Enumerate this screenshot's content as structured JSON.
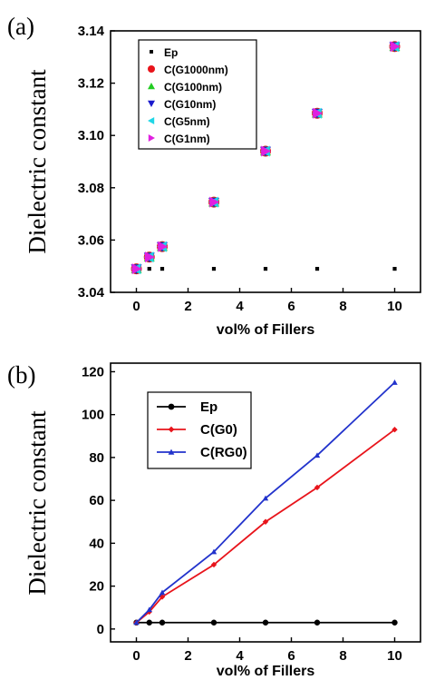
{
  "chart_data": [
    {
      "panel_label": "(a)",
      "type": "scatter",
      "xlabel": "vol% of Fillers",
      "ylabel": "Dielectric constant",
      "xlim": [
        -1,
        11
      ],
      "ylim": [
        3.04,
        3.14
      ],
      "xticks": [
        0,
        2,
        4,
        6,
        8,
        10
      ],
      "yticks": [
        3.04,
        3.06,
        3.08,
        3.1,
        3.12,
        3.14
      ],
      "ytick_labels": [
        "3.04",
        "3.06",
        "3.08",
        "3.10",
        "3.12",
        "3.14"
      ],
      "legend_position": "top-left",
      "series": [
        {
          "name": "Ep",
          "marker": "square",
          "color": "#000000",
          "x": [
            0,
            0.5,
            1,
            3,
            5,
            7,
            10
          ],
          "y": [
            3.049,
            3.049,
            3.049,
            3.049,
            3.049,
            3.049,
            3.049
          ]
        },
        {
          "name": "C(G1000nm)",
          "marker": "circle",
          "color": "#e8141b",
          "x": [
            0,
            0.5,
            1,
            3,
            5,
            7,
            10
          ],
          "y": [
            3.049,
            3.0535,
            3.0575,
            3.0745,
            3.094,
            3.1085,
            3.134
          ]
        },
        {
          "name": "C(G100nm)",
          "marker": "triangle-up",
          "color": "#22cc22",
          "x": [
            0,
            0.5,
            1,
            3,
            5,
            7,
            10
          ],
          "y": [
            3.049,
            3.0535,
            3.0575,
            3.0745,
            3.094,
            3.1085,
            3.134
          ]
        },
        {
          "name": "C(G10nm)",
          "marker": "triangle-down",
          "color": "#1a1acc",
          "x": [
            0,
            0.5,
            1,
            3,
            5,
            7,
            10
          ],
          "y": [
            3.049,
            3.0535,
            3.0575,
            3.0745,
            3.094,
            3.1085,
            3.134
          ]
        },
        {
          "name": "C(G5nm)",
          "marker": "triangle-left",
          "color": "#1fd6e6",
          "x": [
            0,
            0.5,
            1,
            3,
            5,
            7,
            10
          ],
          "y": [
            3.049,
            3.0535,
            3.0575,
            3.0745,
            3.094,
            3.1085,
            3.134
          ]
        },
        {
          "name": "C(G1nm)",
          "marker": "triangle-right",
          "color": "#e020e0",
          "x": [
            0,
            0.5,
            1,
            3,
            5,
            7,
            10
          ],
          "y": [
            3.049,
            3.0535,
            3.0575,
            3.0745,
            3.094,
            3.1085,
            3.134
          ]
        }
      ]
    },
    {
      "panel_label": "(b)",
      "type": "line",
      "xlabel": "vol% of Fillers",
      "ylabel": "Dielectric constant",
      "xlim": [
        -1,
        11
      ],
      "ylim": [
        -6,
        124
      ],
      "xticks": [
        0,
        2,
        4,
        6,
        8,
        10
      ],
      "yticks": [
        0,
        20,
        40,
        60,
        80,
        100,
        120
      ],
      "ytick_labels": [
        "0",
        "20",
        "40",
        "60",
        "80",
        "100",
        "120"
      ],
      "legend_position": "top-left",
      "series": [
        {
          "name": "Ep",
          "marker": "circle",
          "color": "#000000",
          "x": [
            0,
            0.5,
            1,
            3,
            5,
            7,
            10
          ],
          "y": [
            3,
            3,
            3,
            3,
            3,
            3,
            3
          ]
        },
        {
          "name": "C(G0)",
          "marker": "diamond",
          "color": "#e8141b",
          "x": [
            0,
            0.5,
            1,
            3,
            5,
            7,
            10
          ],
          "y": [
            3,
            8,
            15,
            30,
            50,
            66,
            93
          ]
        },
        {
          "name": "C(RG0)",
          "marker": "triangle-up",
          "color": "#2233cc",
          "x": [
            0,
            0.5,
            1,
            3,
            5,
            7,
            10
          ],
          "y": [
            3,
            9,
            17,
            36,
            61,
            81,
            115
          ]
        }
      ]
    }
  ]
}
